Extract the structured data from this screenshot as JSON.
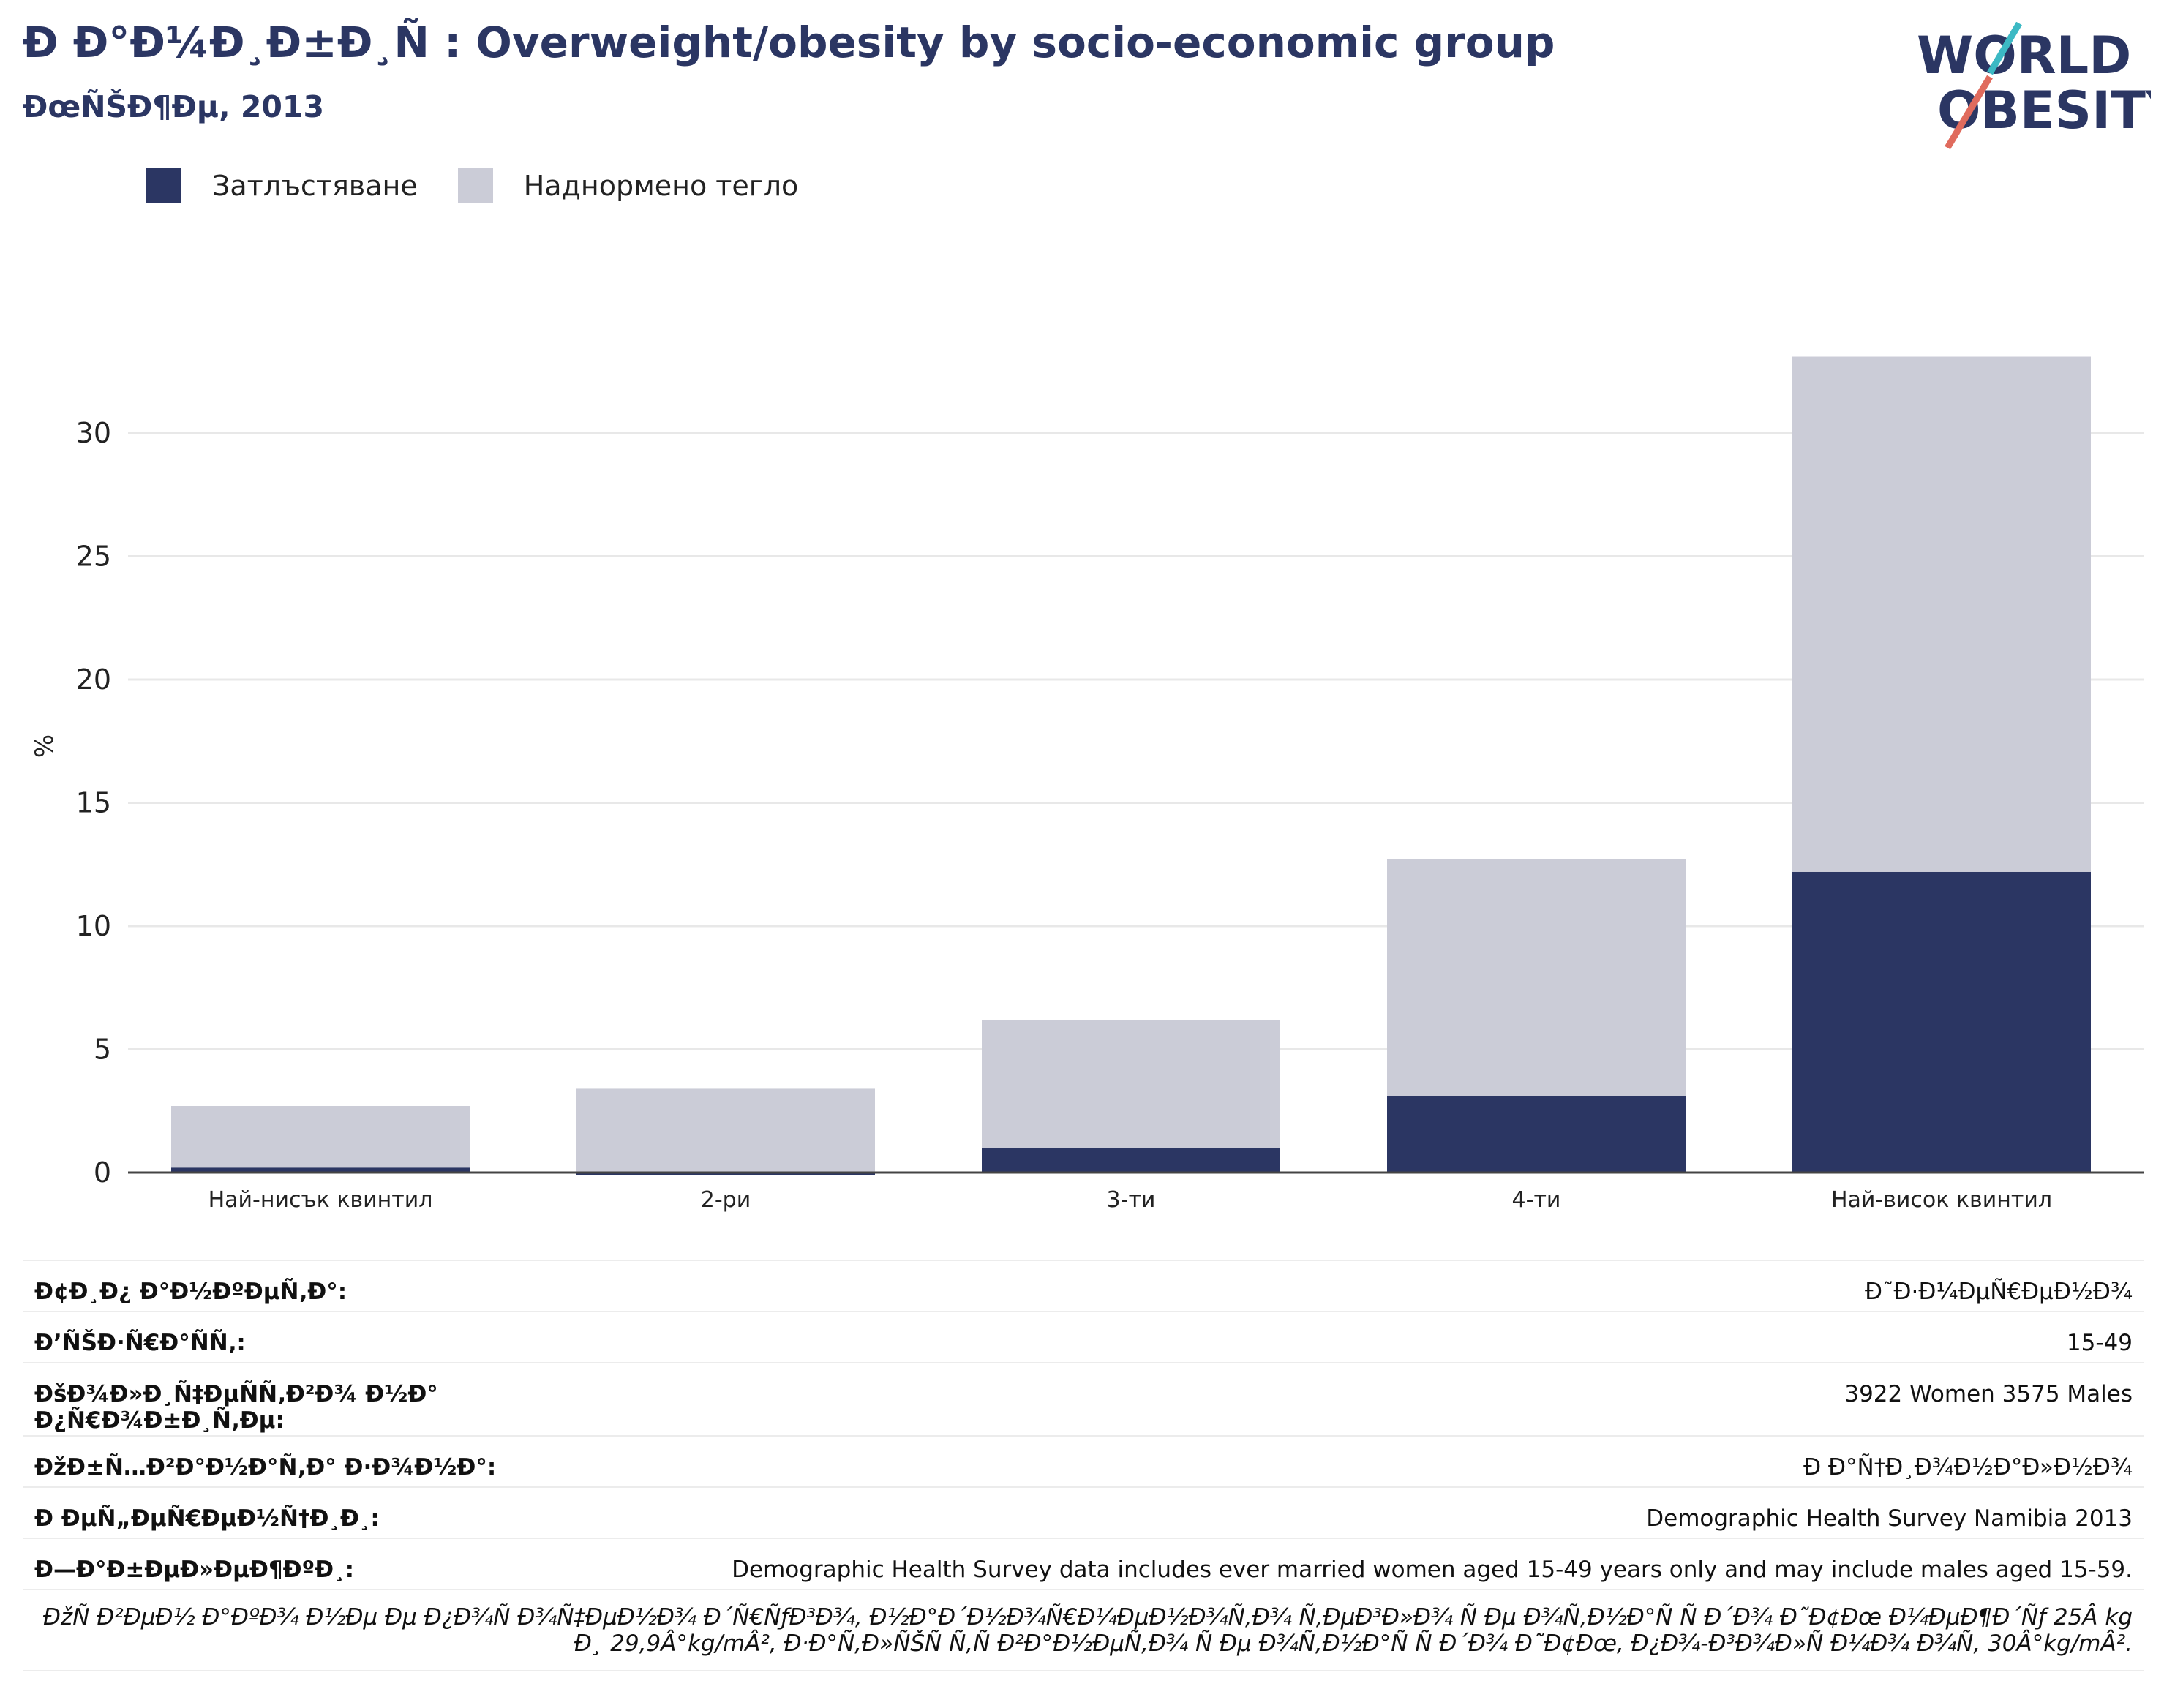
{
  "header": {
    "title": "Ð Ð°Ð¼Ð¸Ð±Ð¸Ñ : Overweight/obesity by socio-economic group",
    "subtitle": "ÐœÑŠÐ¶Ðµ, 2013"
  },
  "logo": {
    "line1": "WORLD",
    "line2": "OBESITY",
    "accent_teal": "#3cb9c4",
    "accent_coral": "#e06b5d"
  },
  "colors": {
    "obesity": "#2b3663",
    "overweight": "#cbccd7",
    "axis": "#444444",
    "grid": "#e8e8e8"
  },
  "legend": {
    "items": [
      {
        "label": "Затлъстяване"
      },
      {
        "label": "Наднормено тегло"
      }
    ]
  },
  "chart_data": {
    "type": "bar",
    "stacked": true,
    "categories": [
      "Най-нисък квинтил",
      "2-ри",
      "3-ти",
      "4-ти",
      "Най-висок квинтил"
    ],
    "series": [
      {
        "name": "Затлъстяване",
        "values": [
          0.2,
          -0.1,
          1.0,
          3.1,
          12.2
        ]
      },
      {
        "name": "Наднормено тегло",
        "values": [
          2.5,
          3.4,
          5.2,
          9.6,
          20.9
        ]
      }
    ],
    "ylabel": "%",
    "ylim": [
      -0.2,
      35
    ],
    "yticks": [
      0,
      5,
      10,
      15,
      20,
      25,
      30
    ],
    "grid": true
  },
  "info_table": [
    {
      "key": "Ð¢Ð¸Ð¿ Ð°Ð½ÐºÐµÑ‚Ð°:",
      "value": "Ð˜Ð·Ð¼ÐµÑ€ÐµÐ½Ð¾"
    },
    {
      "key": "Ð’ÑŠÐ·Ñ€Ð°ÑÑ‚:",
      "value": "15-49"
    },
    {
      "key": "ÐšÐ¾Ð»Ð¸Ñ‡ÐµÑÑ‚Ð²Ð¾ Ð½Ð°\nÐ¿Ñ€Ð¾Ð±Ð¸Ñ‚Ðµ:",
      "value": "3922 Women 3575 Males"
    },
    {
      "key": "ÐžÐ±Ñ…Ð²Ð°Ð½Ð°Ñ‚Ð° Ð·Ð¾Ð½Ð°:",
      "value": "Ð Ð°Ñ†Ð¸Ð¾Ð½Ð°Ð»Ð½Ð¾"
    },
    {
      "key": "Ð ÐµÑ„ÐµÑ€ÐµÐ½Ñ†Ð¸Ð¸:",
      "value": "Demographic Health Survey Namibia 2013"
    },
    {
      "key": "Ð—Ð°Ð±ÐµÐ»ÐµÐ¶ÐºÐ¸:",
      "value": "Demographic Health Survey data includes ever married women aged 15-49 years only and may include males aged 15-59."
    }
  ],
  "footnote": "ÐžÑ Ð²ÐµÐ½ Ð°ÐºÐ¾ Ð½Ðµ Ðµ Ð¿Ð¾Ñ Ð¾Ñ‡ÐµÐ½Ð¾ Ð´Ñ€ÑƒÐ³Ð¾, Ð½Ð°Ð´Ð½Ð¾Ñ€Ð¼ÐµÐ½Ð¾Ñ‚Ð¾ Ñ‚ÐµÐ³Ð»Ð¾ Ñ Ðµ Ð¾Ñ‚Ð½Ð°Ñ Ñ  Ð´Ð¾ Ð˜Ð¢Ðœ Ð¼ÐµÐ¶Ð´Ñƒ 25Â kg Ð¸ 29,9Â°kg/mÂ², Ð·Ð°Ñ‚Ð»ÑŠÑ Ñ‚Ñ Ð²Ð°Ð½ÐµÑ‚Ð¾ Ñ Ðµ Ð¾Ñ‚Ð½Ð°Ñ Ñ  Ð´Ð¾ Ð˜Ð¢Ðœ, Ð¿Ð¾-Ð³Ð¾Ð»Ñ Ð¼Ð¾ Ð¾Ñ‚ 30Â°kg/mÂ²."
}
